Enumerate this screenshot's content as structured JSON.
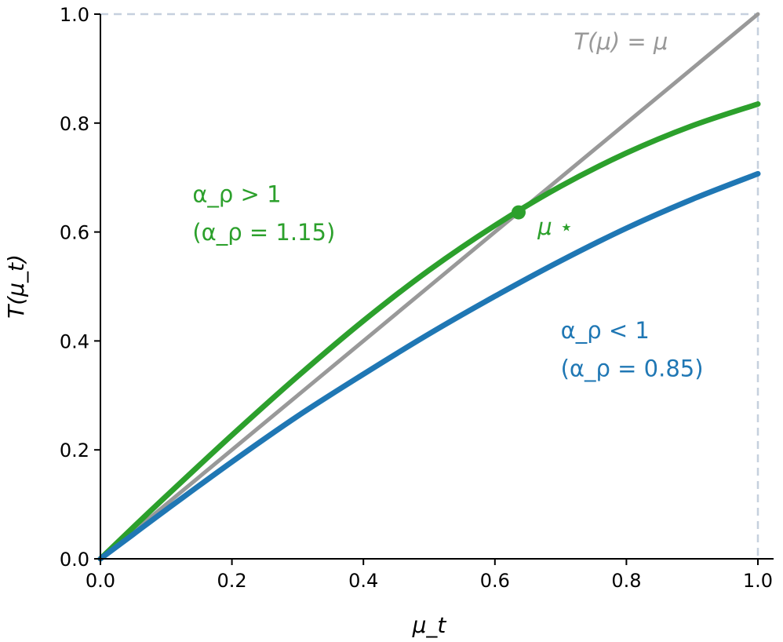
{
  "chart_data": {
    "type": "line",
    "xlabel": "μ_t",
    "ylabel": "T(μ_t)",
    "xlim": [
      0.0,
      1.0
    ],
    "ylim": [
      0.0,
      1.0
    ],
    "grid": false,
    "x_ticks": [
      "0.0",
      "0.2",
      "0.4",
      "0.6",
      "0.8",
      "1.0"
    ],
    "y_ticks": [
      "0.0",
      "0.2",
      "0.4",
      "0.6",
      "0.8",
      "1.0"
    ],
    "series": [
      {
        "color": "#999999",
        "x": [
          0.0,
          0.2,
          0.4,
          0.6,
          0.8,
          1.0
        ],
        "y": [
          0.0,
          0.2,
          0.4,
          0.6,
          0.8,
          1.0
        ]
      },
      {
        "color": "#2ca02c",
        "x": [
          0.0,
          0.05,
          0.1,
          0.2,
          0.3,
          0.4,
          0.5,
          0.6,
          0.7,
          0.8,
          0.9,
          1.0
        ],
        "y": [
          0.0,
          0.058,
          0.115,
          0.227,
          0.335,
          0.437,
          0.53,
          0.612,
          0.684,
          0.745,
          0.795,
          0.835
        ]
      },
      {
        "color": "#1f77b4",
        "x": [
          0.0,
          0.05,
          0.1,
          0.2,
          0.3,
          0.4,
          0.5,
          0.6,
          0.7,
          0.8,
          0.9,
          1.0
        ],
        "y": [
          0.0,
          0.045,
          0.09,
          0.178,
          0.262,
          0.339,
          0.413,
          0.482,
          0.547,
          0.607,
          0.66,
          0.707
        ]
      }
    ],
    "reference_lines": [
      {
        "orientation": "horizontal",
        "value": 1.0,
        "color": "#c6d0de",
        "style": "dashed"
      },
      {
        "orientation": "vertical",
        "value": 1.0,
        "color": "#c6d0de",
        "style": "dashed"
      }
    ],
    "fixed_point": {
      "x": 0.636,
      "y": 0.636,
      "color": "#2ca02c"
    },
    "annotations": {
      "identity": {
        "label": "T(μ) = μ",
        "x": 0.72,
        "y": 0.935,
        "color": "#999999"
      },
      "fixed_point_label": {
        "label": "μ ⋆",
        "x": 0.665,
        "y": 0.595,
        "color": "#2ca02c"
      },
      "green_line1": {
        "label": "α_ρ > 1",
        "x": 0.14,
        "y": 0.655,
        "color": "#2ca02c"
      },
      "green_line2": {
        "label": "(α_ρ = 1.15)",
        "x": 0.14,
        "y": 0.585,
        "color": "#2ca02c"
      },
      "blue_line1": {
        "label": "α_ρ < 1",
        "x": 0.7,
        "y": 0.405,
        "color": "#1f77b4"
      },
      "blue_line2": {
        "label": "(α_ρ = 0.85)",
        "x": 0.7,
        "y": 0.335,
        "color": "#1f77b4"
      }
    }
  }
}
